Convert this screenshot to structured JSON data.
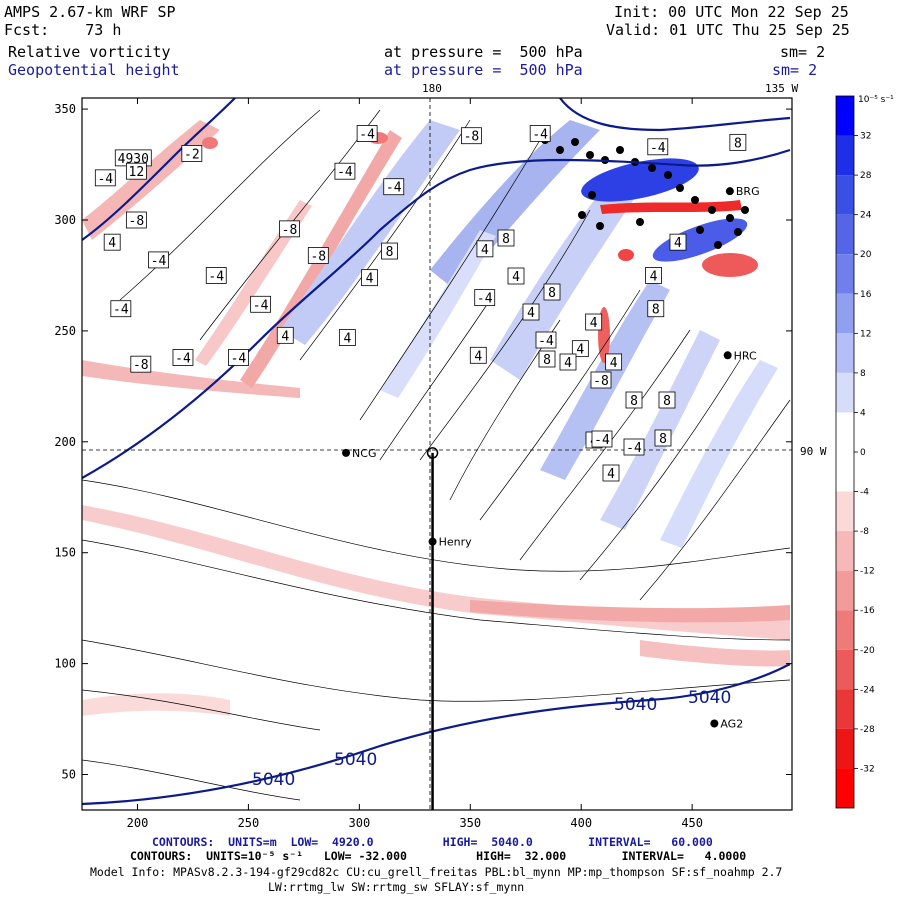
{
  "header": {
    "model": "AMPS 2.67-km WRF SP",
    "forecast": "Fcst:    73 h",
    "field1_name": "Relative vorticity",
    "field1_level": "at pressure =  500 hPa",
    "field1_smooth": "sm= 2",
    "field2_name": "Geopotential height",
    "field2_level": "at pressure =  500 hPa",
    "field2_smooth": "sm= 2",
    "init": "Init: 00 UTC Mon 22 Sep 25",
    "valid": "Valid: 01 UTC Thu 25 Sep 25"
  },
  "map": {
    "top_labels": [
      "180",
      "135 W"
    ],
    "right_label": "90 W",
    "stations": [
      {
        "name": "NCG",
        "x": 294,
        "y": 195
      },
      {
        "name": "Henry",
        "x": 333,
        "y": 155
      },
      {
        "name": "HRC",
        "x": 466,
        "y": 239
      },
      {
        "name": "BRG",
        "x": 467,
        "y": 313
      },
      {
        "name": "AG2",
        "x": 460,
        "y": 73
      }
    ],
    "section_line": {
      "x": 333,
      "y_from": 34,
      "y_to": 195
    }
  },
  "chart_data": {
    "type": "heatmap",
    "x_ticks": [
      200,
      250,
      300,
      350,
      400,
      450
    ],
    "y_ticks": [
      50,
      100,
      150,
      200,
      250,
      300,
      350
    ],
    "xlim": [
      175,
      495
    ],
    "ylim": [
      34,
      355
    ],
    "colorbar": {
      "unit": "10⁻⁵ s⁻¹",
      "tick_labels": [
        "32",
        "28",
        "24",
        "20",
        "16",
        "12",
        "8",
        "4",
        "0",
        "-4",
        "-8",
        "-12",
        "-16",
        "-20",
        "-24",
        "-28",
        "-32"
      ],
      "colors": [
        "#0000ff",
        "#1f2fe8",
        "#3a4fe6",
        "#5565e8",
        "#707fec",
        "#909ff0",
        "#b3bff6",
        "#d6ddfb",
        "#ffffff",
        "#ffffff",
        "#fbd9d9",
        "#f7b8b8",
        "#f39a9a",
        "#ef7a7a",
        "#ec5a5a",
        "#ea3838",
        "#ee1515",
        "#ff0000"
      ]
    },
    "height_contours": [
      {
        "value": "5040",
        "labels": [
          "5040",
          "5040",
          "5040",
          "5040"
        ]
      }
    ],
    "vorticity_labels": [
      {
        "t": "4930",
        "x": 190,
        "y": 328
      },
      {
        "t": "-4",
        "x": 175,
        "y": 330
      },
      {
        "t": "-2",
        "x": 220,
        "y": 330
      },
      {
        "t": "12",
        "x": 195,
        "y": 322
      },
      {
        "t": "-4",
        "x": 181,
        "y": 319
      },
      {
        "t": "-8",
        "x": 195,
        "y": 300
      },
      {
        "t": "4",
        "x": 185,
        "y": 290
      },
      {
        "t": "-4",
        "x": 205,
        "y": 282
      },
      {
        "t": "-4",
        "x": 231,
        "y": 275
      },
      {
        "t": "-4",
        "x": 251,
        "y": 262
      },
      {
        "t": "-4",
        "x": 188,
        "y": 260
      },
      {
        "t": "-8",
        "x": 197,
        "y": 235
      },
      {
        "t": "-4",
        "x": 216,
        "y": 238
      },
      {
        "t": "-4",
        "x": 241,
        "y": 238
      },
      {
        "t": "4",
        "x": 263,
        "y": 248
      },
      {
        "t": "-8",
        "x": 264,
        "y": 296
      },
      {
        "t": "-4",
        "x": 289,
        "y": 322
      },
      {
        "t": "-4",
        "x": 311,
        "y": 315
      },
      {
        "t": "-4",
        "x": 299,
        "y": 339
      },
      {
        "t": "-8",
        "x": 346,
        "y": 338
      },
      {
        "t": "4",
        "x": 291,
        "y": 247
      },
      {
        "t": "4",
        "x": 301,
        "y": 274
      },
      {
        "t": "-8",
        "x": 277,
        "y": 284
      },
      {
        "t": "8",
        "x": 310,
        "y": 286
      },
      {
        "t": "4",
        "x": 350,
        "y": 239
      },
      {
        "t": "4",
        "x": 353,
        "y": 287
      },
      {
        "t": "-4",
        "x": 352,
        "y": 265
      },
      {
        "t": "-4",
        "x": 377,
        "y": 339
      },
      {
        "t": "-4",
        "x": 430,
        "y": 333
      },
      {
        "t": "8",
        "x": 467,
        "y": 335
      },
      {
        "t": "4",
        "x": 440,
        "y": 290
      },
      {
        "t": "4",
        "x": 396,
        "y": 242
      },
      {
        "t": "4",
        "x": 411,
        "y": 236
      },
      {
        "t": "4",
        "x": 402,
        "y": 254
      },
      {
        "t": "4",
        "x": 429,
        "y": 275
      },
      {
        "t": "8",
        "x": 430,
        "y": 260
      },
      {
        "t": "8",
        "x": 498,
        "y": 238
      },
      {
        "t": "4",
        "x": 508,
        "y": 276
      },
      {
        "t": "8",
        "x": 544,
        "y": 292
      },
      {
        "t": "4",
        "x": 523,
        "y": 312
      },
      {
        "t": "-4",
        "x": 536,
        "y": 340
      },
      {
        "t": "8",
        "x": 539,
        "y": 359
      },
      {
        "t": "4",
        "x": 560,
        "y": 362
      },
      {
        "t": "-8",
        "x": 591,
        "y": 380
      },
      {
        "t": "4",
        "x": 586,
        "y": 440
      },
      {
        "t": "8",
        "x": 626,
        "y": 400
      },
      {
        "t": "-4",
        "x": 592,
        "y": 439
      },
      {
        "t": "8",
        "x": 659,
        "y": 400
      },
      {
        "t": "-4",
        "x": 624,
        "y": 447
      },
      {
        "t": "4",
        "x": 603,
        "y": 473
      },
      {
        "t": "8",
        "x": 655,
        "y": 438
      }
    ]
  },
  "footer": {
    "line1": "CONTOURS:  UNITS=m  LOW=  4920.0          HIGH=  5040.0        INTERVAL=   60.000",
    "line2": "CONTOURS:  UNITS=10⁻⁵ s⁻¹   LOW= -32.000          HIGH=  32.000        INTERVAL=   4.0000",
    "line3": "Model Info: MPASv8.2.3-194-gf29cd82c CU:cu_grell_freitas PBL:bl_mynn MP:mp_thompson SF:sf_noahmp 2.7",
    "line4": "LW:rrtmg_lw SW:rrtmg_sw SFLAY:sf_mynn"
  }
}
